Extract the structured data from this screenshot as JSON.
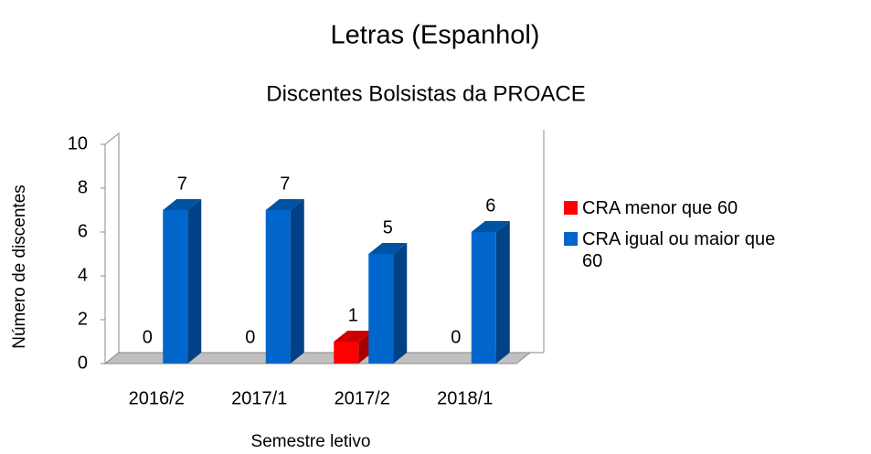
{
  "chart_data": {
    "type": "bar3d",
    "title": "Letras (Espanhol)",
    "subtitle": "Discentes Bolsistas da PROACE",
    "categories": [
      "2016/2",
      "2017/1",
      "2017/2",
      "2018/1"
    ],
    "series": [
      {
        "name": "CRA menor que 60",
        "color": "#ff0000",
        "values": [
          0,
          0,
          1,
          0
        ]
      },
      {
        "name": "CRA igual ou maior que 60",
        "color": "#0066cc",
        "values": [
          7,
          7,
          5,
          6
        ]
      }
    ],
    "ylim": [
      0,
      10
    ],
    "yticks": [
      0,
      2,
      4,
      6,
      8,
      10
    ],
    "xlabel": "Semestre letivo",
    "ylabel": "Número de discentes",
    "legend": "right"
  }
}
